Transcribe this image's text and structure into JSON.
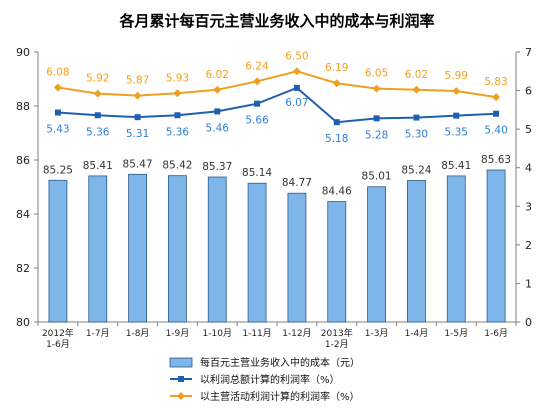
{
  "chart_data": {
    "type": "bar",
    "title": "各月累计每百元主营业务收入中的成本与利润率",
    "categories": [
      [
        "2012年",
        "1-6月"
      ],
      [
        "1-7月"
      ],
      [
        "1-8月"
      ],
      [
        "1-9月"
      ],
      [
        "1-10月"
      ],
      [
        "1-11月"
      ],
      [
        "1-12月"
      ],
      [
        "2013年",
        "1-2月"
      ],
      [
        "1-3月"
      ],
      [
        "1-4月"
      ],
      [
        "1-5月"
      ],
      [
        "1-6月"
      ]
    ],
    "y_left": {
      "min": 80,
      "max": 90,
      "ticks": [
        80,
        82,
        84,
        86,
        88,
        90
      ]
    },
    "y_right": {
      "min": 0,
      "max": 7,
      "ticks": [
        0,
        1,
        2,
        3,
        4,
        5,
        6,
        7
      ]
    },
    "series": [
      {
        "name": "每百元主营业务收入中的成本（元）",
        "kind": "bar",
        "axis": "left",
        "color": "#7fb6ea",
        "values": [
          85.25,
          85.41,
          85.47,
          85.42,
          85.37,
          85.14,
          84.77,
          84.46,
          85.01,
          85.24,
          85.41,
          85.63
        ],
        "labels": [
          "85.25",
          "85.41",
          "85.47",
          "85.42",
          "85.37",
          "85.14",
          "84.77",
          "84.46",
          "85.01",
          "85.24",
          "85.41",
          "85.63"
        ]
      },
      {
        "name": "以利润总额计算的利润率（%）",
        "kind": "line",
        "axis": "right",
        "color": "#1f5fb0",
        "label_color": "#2e7fd6",
        "marker": "square",
        "values": [
          5.43,
          5.36,
          5.31,
          5.36,
          5.46,
          5.66,
          6.07,
          5.18,
          5.28,
          5.3,
          5.35,
          5.4
        ],
        "labels": [
          "5.43",
          "5.36",
          "5.31",
          "5.36",
          "5.46",
          "5.66",
          "6.07",
          "5.18",
          "5.28",
          "5.30",
          "5.35",
          "5.40"
        ]
      },
      {
        "name": "以主营活动利润计算的利润率（%）",
        "kind": "line",
        "axis": "right",
        "color": "#f0a020",
        "label_color": "#f0a020",
        "marker": "diamond",
        "values": [
          6.08,
          5.92,
          5.87,
          5.93,
          6.02,
          6.24,
          6.5,
          6.19,
          6.05,
          6.02,
          5.99,
          5.83
        ],
        "labels": [
          "6.08",
          "5.92",
          "5.87",
          "5.93",
          "6.02",
          "6.24",
          "6.50",
          "6.19",
          "6.05",
          "6.02",
          "5.99",
          "5.83"
        ]
      }
    ],
    "legend_position": "bottom",
    "grid": false
  }
}
